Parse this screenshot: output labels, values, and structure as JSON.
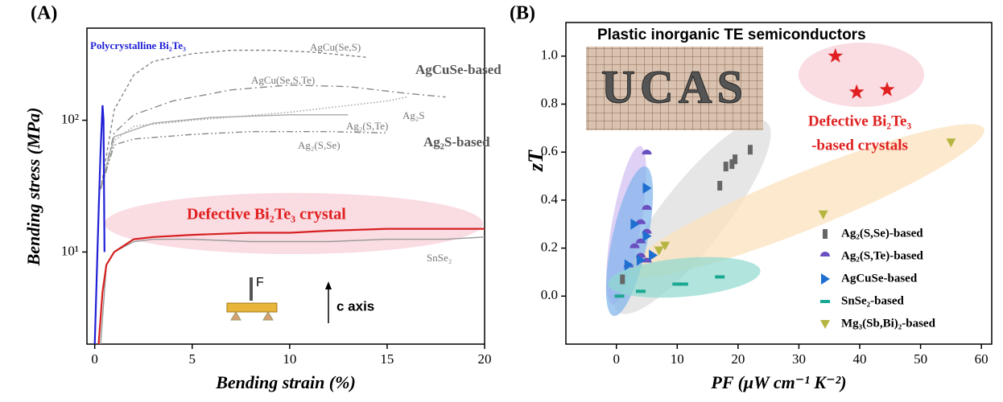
{
  "chart_data": [
    {
      "type": "line",
      "panel_label": "(A)",
      "x_label": "Bending strain (%)",
      "y_label": "Bending stress (MPa)",
      "y_scale": "log",
      "xlim": [
        -0.4,
        20
      ],
      "ylim": [
        2,
        500
      ],
      "xticks": [
        0,
        5,
        10,
        15,
        20
      ],
      "yticks": [
        {
          "value": 10,
          "label": "10¹"
        },
        {
          "value": 100,
          "label": "10²"
        }
      ],
      "series": [
        {
          "name": "AgCu(Se,S)",
          "color": "#888888",
          "style": "dashed",
          "x": [
            0.3,
            1,
            2,
            3,
            5,
            7,
            9,
            11,
            13,
            14
          ],
          "values": [
            30,
            120,
            220,
            280,
            320,
            340,
            340,
            330,
            310,
            300
          ]
        },
        {
          "name": "AgCu(Se,S,Te)",
          "color": "#888888",
          "style": "dash-dot",
          "x": [
            0.3,
            1,
            2,
            4,
            7,
            10,
            13,
            16,
            18
          ],
          "values": [
            30,
            80,
            110,
            140,
            170,
            185,
            180,
            160,
            150
          ]
        },
        {
          "name": "Ag₂(S,Te)",
          "color": "#999999",
          "style": "dotted",
          "x": [
            0.3,
            1,
            2,
            5,
            10,
            15,
            16
          ],
          "values": [
            30,
            70,
            90,
            100,
            115,
            140,
            150
          ]
        },
        {
          "name": "Ag₂S",
          "color": "#aaaaaa",
          "style": "solid",
          "x": [
            0.3,
            1,
            3,
            6,
            10,
            13
          ],
          "values": [
            30,
            75,
            95,
            105,
            110,
            110
          ]
        },
        {
          "name": "Ag₂(S,Se)",
          "color": "#888888",
          "style": "dash-dot-dot",
          "x": [
            0.3,
            1,
            2,
            5,
            8,
            12,
            15
          ],
          "values": [
            30,
            65,
            72,
            78,
            82,
            82,
            80
          ]
        },
        {
          "name": "Polycrystalline Bi₂Te₃",
          "color": "#1f1fd6",
          "style": "solid",
          "x": [
            0,
            0.2,
            0.3,
            0.4,
            0.45,
            0.5
          ],
          "values": [
            2,
            20,
            60,
            130,
            100,
            10
          ]
        },
        {
          "name": "SnSe₂",
          "color": "#999999",
          "style": "solid",
          "x": [
            0.3,
            0.6,
            1,
            2,
            3,
            5,
            8,
            10,
            12,
            15,
            18,
            20
          ],
          "values": [
            2,
            8,
            10,
            12,
            12.5,
            12.5,
            12,
            12,
            12,
            12.5,
            12.5,
            13
          ]
        },
        {
          "name": "Defective Bi₂Te₃ crystal",
          "color": "#d62020",
          "style": "solid",
          "x": [
            0.2,
            0.4,
            0.6,
            1,
            2,
            3,
            5,
            8,
            10,
            12,
            15,
            18,
            20
          ],
          "values": [
            2,
            5,
            8,
            10,
            12.5,
            13,
            13.5,
            14,
            14,
            14.5,
            15,
            15,
            15
          ]
        }
      ],
      "annotations": [
        "AgCuSe-based",
        "Ag₂S-based",
        "F",
        "c axis"
      ]
    },
    {
      "type": "scatter",
      "panel_label": "(B)",
      "title": "Plastic inorganic TE semiconductors",
      "x_label": "PF (μW cm⁻¹ K⁻²)",
      "y_label": "zT",
      "photo_text": "UCAS",
      "xlim": [
        -8.3,
        61.7
      ],
      "ylim": [
        -0.2,
        1.14
      ],
      "xticks": [
        0,
        10,
        20,
        30,
        40,
        50,
        60
      ],
      "yticks": [
        {
          "value": 0,
          "label": "0.0"
        },
        0.2,
        0.4,
        0.6,
        0.8,
        {
          "value": 1,
          "label": "1.0"
        }
      ],
      "legend": "lower right",
      "series": [
        {
          "name": "Ag₂(S,Se)-based",
          "color": "#666666",
          "marker": "rect",
          "x": [
            1,
            17,
            18,
            19,
            19.5,
            22
          ],
          "values": [
            0.07,
            0.46,
            0.54,
            0.55,
            0.57,
            0.61
          ]
        },
        {
          "name": "Ag₂(S,Te)-based",
          "color": "#6a4fc0",
          "marker": "half-circle",
          "x": [
            5,
            5,
            4,
            5,
            4,
            3,
            4,
            2,
            5
          ],
          "values": [
            0.59,
            0.36,
            0.3,
            0.26,
            0.22,
            0.2,
            0.16,
            0.12,
            0.14
          ]
        },
        {
          "name": "AgCuSe-based",
          "color": "#1f6fd0",
          "marker": "triangle-right",
          "x": [
            5,
            3,
            5,
            4,
            6,
            2
          ],
          "values": [
            0.45,
            0.3,
            0.25,
            0.15,
            0.17,
            0.13
          ]
        },
        {
          "name": "SnSe₂-based",
          "color": "#1aa892",
          "marker": "dash",
          "x": [
            0.5,
            4,
            10,
            11,
            17
          ],
          "values": [
            0,
            0.02,
            0.05,
            0.05,
            0.08
          ]
        },
        {
          "name": "Mg₃(Sb,Bi)₂-based",
          "color": "#b5b541",
          "marker": "triangle-down",
          "x": [
            7,
            8,
            34,
            55
          ],
          "values": [
            0.19,
            0.21,
            0.34,
            0.64
          ]
        },
        {
          "color": "#e02020",
          "marker": "star",
          "x": [
            36,
            39.5,
            44.5
          ],
          "values": [
            1,
            0.85,
            0.86
          ]
        }
      ],
      "annotations": [
        "Defective Bi₂Te₃",
        "-based crystals"
      ]
    }
  ]
}
